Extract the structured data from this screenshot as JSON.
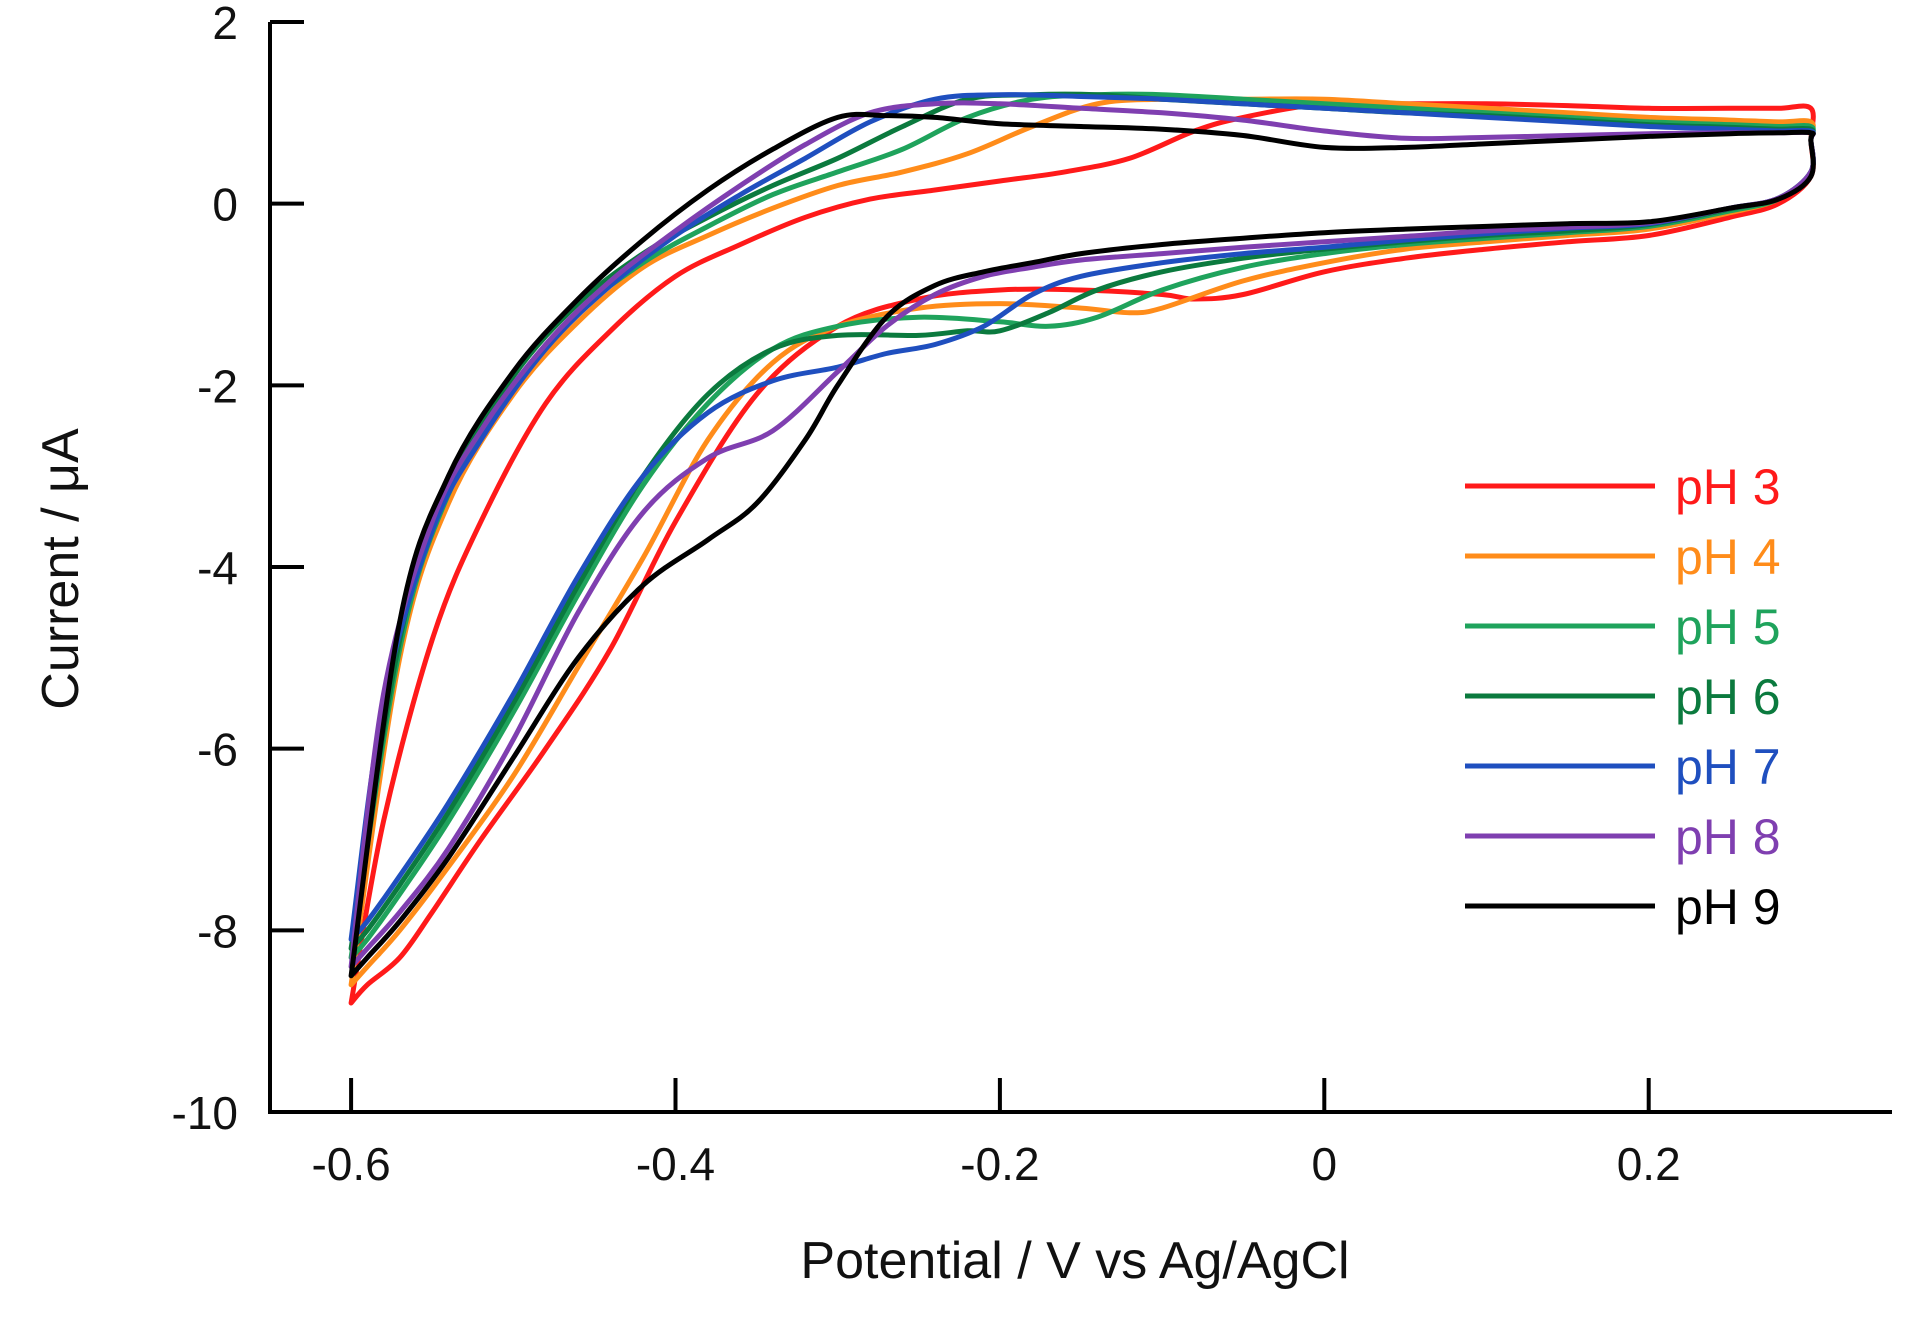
{
  "chart_data": {
    "type": "line",
    "title": "",
    "xlabel": "Potential / V vs Ag/AgCl",
    "ylabel": "Current / μA",
    "xlim": [
      -0.65,
      0.35
    ],
    "ylim": [
      -10,
      2
    ],
    "x_ticks": [
      -0.6,
      -0.4,
      -0.2,
      0,
      0.2
    ],
    "x_tick_labels": [
      "-0.6",
      "-0.4",
      "-0.2",
      "0",
      "0.2"
    ],
    "y_ticks": [
      2,
      0,
      -2,
      -4,
      -6,
      -8,
      -10
    ],
    "y_tick_labels": [
      "2",
      "0",
      "-2",
      "-4",
      "-6",
      "-8",
      "-10"
    ],
    "grid": false,
    "legend_position": "right",
    "series": [
      {
        "name": "pH 3",
        "color": "#ff1a1a",
        "x": [
          -0.6,
          -0.59,
          -0.57,
          -0.55,
          -0.52,
          -0.48,
          -0.44,
          -0.4,
          -0.35,
          -0.3,
          -0.25,
          -0.2,
          -0.15,
          -0.1,
          -0.08,
          -0.05,
          0,
          0.05,
          0.1,
          0.15,
          0.2,
          0.25,
          0.28,
          0.3,
          0.3,
          0.3,
          0.28,
          0.25,
          0.2,
          0.15,
          0.1,
          0.05,
          0.0,
          -0.05,
          -0.08,
          -0.12,
          -0.16,
          -0.2,
          -0.24,
          -0.28,
          -0.32,
          -0.36,
          -0.4,
          -0.44,
          -0.48,
          -0.52,
          -0.55,
          -0.58,
          -0.6
        ],
        "y": [
          -8.8,
          -8.6,
          -8.3,
          -7.8,
          -7.0,
          -6.0,
          -4.9,
          -3.5,
          -2.1,
          -1.35,
          -1.05,
          -0.95,
          -0.95,
          -1.0,
          -1.05,
          -1.0,
          -0.75,
          -0.6,
          -0.5,
          -0.42,
          -0.35,
          -0.15,
          0.0,
          0.3,
          0.7,
          1.05,
          1.05,
          1.05,
          1.05,
          1.08,
          1.1,
          1.1,
          1.1,
          0.95,
          0.8,
          0.5,
          0.35,
          0.25,
          0.15,
          0.05,
          -0.15,
          -0.45,
          -0.8,
          -1.4,
          -2.2,
          -3.5,
          -4.8,
          -6.8,
          -8.8
        ]
      },
      {
        "name": "pH 4",
        "color": "#ff8c1a",
        "x": [
          -0.6,
          -0.59,
          -0.57,
          -0.54,
          -0.5,
          -0.46,
          -0.42,
          -0.38,
          -0.34,
          -0.3,
          -0.25,
          -0.2,
          -0.15,
          -0.12,
          -0.1,
          -0.05,
          0,
          0.05,
          0.1,
          0.15,
          0.2,
          0.25,
          0.28,
          0.3,
          0.3,
          0.3,
          0.28,
          0.25,
          0.2,
          0.15,
          0.1,
          0.05,
          0.0,
          -0.05,
          -0.1,
          -0.14,
          -0.18,
          -0.22,
          -0.26,
          -0.3,
          -0.34,
          -0.38,
          -0.42,
          -0.46,
          -0.5,
          -0.54,
          -0.57,
          -0.6
        ],
        "y": [
          -8.6,
          -8.4,
          -8.0,
          -7.3,
          -6.3,
          -5.1,
          -3.9,
          -2.6,
          -1.75,
          -1.35,
          -1.15,
          -1.1,
          -1.15,
          -1.2,
          -1.15,
          -0.85,
          -0.65,
          -0.5,
          -0.42,
          -0.35,
          -0.28,
          -0.1,
          0.05,
          0.35,
          0.7,
          0.9,
          0.9,
          0.92,
          0.95,
          1.0,
          1.05,
          1.1,
          1.15,
          1.15,
          1.15,
          1.1,
          0.85,
          0.55,
          0.35,
          0.2,
          -0.05,
          -0.35,
          -0.7,
          -1.3,
          -2.1,
          -3.3,
          -5.0,
          -8.6
        ]
      },
      {
        "name": "pH 5",
        "color": "#1fa35c",
        "x": [
          -0.6,
          -0.59,
          -0.57,
          -0.54,
          -0.5,
          -0.46,
          -0.42,
          -0.38,
          -0.34,
          -0.3,
          -0.25,
          -0.2,
          -0.17,
          -0.14,
          -0.1,
          -0.05,
          0,
          0.05,
          0.1,
          0.15,
          0.2,
          0.25,
          0.28,
          0.3,
          0.3,
          0.3,
          0.28,
          0.25,
          0.2,
          0.15,
          0.1,
          0.05,
          0.0,
          -0.05,
          -0.1,
          -0.14,
          -0.18,
          -0.22,
          -0.26,
          -0.3,
          -0.34,
          -0.38,
          -0.42,
          -0.46,
          -0.5,
          -0.54,
          -0.57,
          -0.6
        ],
        "y": [
          -8.3,
          -8.1,
          -7.6,
          -6.8,
          -5.6,
          -4.3,
          -3.1,
          -2.2,
          -1.6,
          -1.35,
          -1.25,
          -1.3,
          -1.35,
          -1.25,
          -0.95,
          -0.7,
          -0.55,
          -0.45,
          -0.38,
          -0.32,
          -0.25,
          -0.08,
          0.05,
          0.35,
          0.7,
          0.85,
          0.85,
          0.87,
          0.9,
          0.95,
          1.0,
          1.05,
          1.1,
          1.15,
          1.2,
          1.2,
          1.15,
          0.95,
          0.6,
          0.35,
          0.1,
          -0.25,
          -0.65,
          -1.2,
          -2.0,
          -3.2,
          -4.9,
          -8.3
        ]
      },
      {
        "name": "pH 6",
        "color": "#0b7a3e",
        "x": [
          -0.6,
          -0.59,
          -0.57,
          -0.54,
          -0.5,
          -0.46,
          -0.42,
          -0.38,
          -0.34,
          -0.3,
          -0.25,
          -0.22,
          -0.2,
          -0.17,
          -0.14,
          -0.1,
          -0.05,
          0,
          0.05,
          0.1,
          0.15,
          0.2,
          0.25,
          0.28,
          0.3,
          0.3,
          0.3,
          0.28,
          0.25,
          0.2,
          0.15,
          0.1,
          0.05,
          0.0,
          -0.05,
          -0.1,
          -0.14,
          -0.18,
          -0.22,
          -0.26,
          -0.3,
          -0.34,
          -0.38,
          -0.42,
          -0.46,
          -0.5,
          -0.54,
          -0.57,
          -0.6
        ],
        "y": [
          -8.2,
          -8.0,
          -7.5,
          -6.7,
          -5.5,
          -4.2,
          -3.0,
          -2.1,
          -1.6,
          -1.45,
          -1.45,
          -1.4,
          -1.4,
          -1.2,
          -0.95,
          -0.75,
          -0.6,
          -0.5,
          -0.42,
          -0.35,
          -0.3,
          -0.23,
          -0.06,
          0.06,
          0.35,
          0.7,
          0.82,
          0.82,
          0.84,
          0.87,
          0.92,
          0.97,
          1.0,
          1.05,
          1.1,
          1.15,
          1.2,
          1.2,
          1.15,
          0.85,
          0.5,
          0.2,
          -0.15,
          -0.55,
          -1.1,
          -1.9,
          -3.1,
          -4.8,
          -8.2
        ]
      },
      {
        "name": "pH 7",
        "color": "#1f4fbf",
        "x": [
          -0.6,
          -0.59,
          -0.57,
          -0.54,
          -0.5,
          -0.46,
          -0.42,
          -0.38,
          -0.34,
          -0.3,
          -0.27,
          -0.24,
          -0.21,
          -0.18,
          -0.15,
          -0.1,
          -0.05,
          0,
          0.05,
          0.1,
          0.15,
          0.2,
          0.25,
          0.28,
          0.3,
          0.3,
          0.3,
          0.28,
          0.25,
          0.2,
          0.15,
          0.1,
          0.05,
          0.0,
          -0.05,
          -0.1,
          -0.15,
          -0.2,
          -0.24,
          -0.28,
          -0.32,
          -0.36,
          -0.4,
          -0.44,
          -0.48,
          -0.52,
          -0.55,
          -0.58,
          -0.6
        ],
        "y": [
          -8.1,
          -7.9,
          -7.4,
          -6.6,
          -5.4,
          -4.1,
          -3.0,
          -2.3,
          -1.95,
          -1.8,
          -1.65,
          -1.55,
          -1.35,
          -1.0,
          -0.8,
          -0.65,
          -0.55,
          -0.48,
          -0.4,
          -0.33,
          -0.27,
          -0.22,
          -0.05,
          0.06,
          0.35,
          0.7,
          0.8,
          0.8,
          0.82,
          0.85,
          0.9,
          0.95,
          1.0,
          1.05,
          1.1,
          1.15,
          1.18,
          1.2,
          1.15,
          0.9,
          0.5,
          0.1,
          -0.35,
          -0.9,
          -1.6,
          -2.6,
          -3.6,
          -5.5,
          -8.1
        ]
      },
      {
        "name": "pH 8",
        "color": "#7f3fb0",
        "x": [
          -0.6,
          -0.59,
          -0.57,
          -0.54,
          -0.5,
          -0.46,
          -0.42,
          -0.38,
          -0.34,
          -0.3,
          -0.27,
          -0.24,
          -0.21,
          -0.18,
          -0.15,
          -0.1,
          -0.05,
          0,
          0.05,
          0.1,
          0.15,
          0.2,
          0.25,
          0.28,
          0.3,
          0.3,
          0.3,
          0.28,
          0.25,
          0.2,
          0.15,
          0.1,
          0.05,
          0.0,
          -0.05,
          -0.1,
          -0.15,
          -0.2,
          -0.24,
          -0.28,
          -0.32,
          -0.36,
          -0.4,
          -0.44,
          -0.48,
          -0.52,
          -0.55,
          -0.58,
          -0.6
        ],
        "y": [
          -8.4,
          -8.2,
          -7.8,
          -7.1,
          -5.9,
          -4.5,
          -3.4,
          -2.8,
          -2.5,
          -1.85,
          -1.35,
          -1.0,
          -0.8,
          -0.7,
          -0.62,
          -0.55,
          -0.48,
          -0.42,
          -0.36,
          -0.3,
          -0.26,
          -0.21,
          -0.05,
          0.06,
          0.35,
          0.7,
          0.78,
          0.78,
          0.78,
          0.77,
          0.75,
          0.73,
          0.72,
          0.8,
          0.92,
          1.0,
          1.05,
          1.1,
          1.1,
          1.0,
          0.65,
          0.2,
          -0.3,
          -0.85,
          -1.55,
          -2.5,
          -3.5,
          -5.4,
          -8.4
        ]
      },
      {
        "name": "pH 9",
        "color": "#000000",
        "x": [
          -0.6,
          -0.59,
          -0.57,
          -0.54,
          -0.5,
          -0.46,
          -0.42,
          -0.38,
          -0.35,
          -0.32,
          -0.3,
          -0.27,
          -0.24,
          -0.21,
          -0.18,
          -0.15,
          -0.1,
          -0.05,
          0,
          0.05,
          0.1,
          0.15,
          0.2,
          0.25,
          0.28,
          0.3,
          0.3,
          0.3,
          0.28,
          0.25,
          0.2,
          0.15,
          0.1,
          0.05,
          0.0,
          -0.05,
          -0.1,
          -0.15,
          -0.2,
          -0.24,
          -0.27,
          -0.3,
          -0.34,
          -0.38,
          -0.42,
          -0.46,
          -0.5,
          -0.54,
          -0.57,
          -0.6
        ],
        "y": [
          -8.5,
          -8.3,
          -7.9,
          -7.2,
          -6.1,
          -5.0,
          -4.2,
          -3.7,
          -3.3,
          -2.6,
          -2.0,
          -1.25,
          -0.9,
          -0.75,
          -0.65,
          -0.55,
          -0.45,
          -0.38,
          -0.32,
          -0.28,
          -0.25,
          -0.22,
          -0.2,
          -0.05,
          0.05,
          0.3,
          0.7,
          0.78,
          0.78,
          0.77,
          0.74,
          0.7,
          0.66,
          0.62,
          0.62,
          0.75,
          0.82,
          0.85,
          0.88,
          0.95,
          0.97,
          0.95,
          0.6,
          0.15,
          -0.4,
          -1.05,
          -1.85,
          -3.0,
          -4.6,
          -8.5
        ]
      }
    ]
  }
}
